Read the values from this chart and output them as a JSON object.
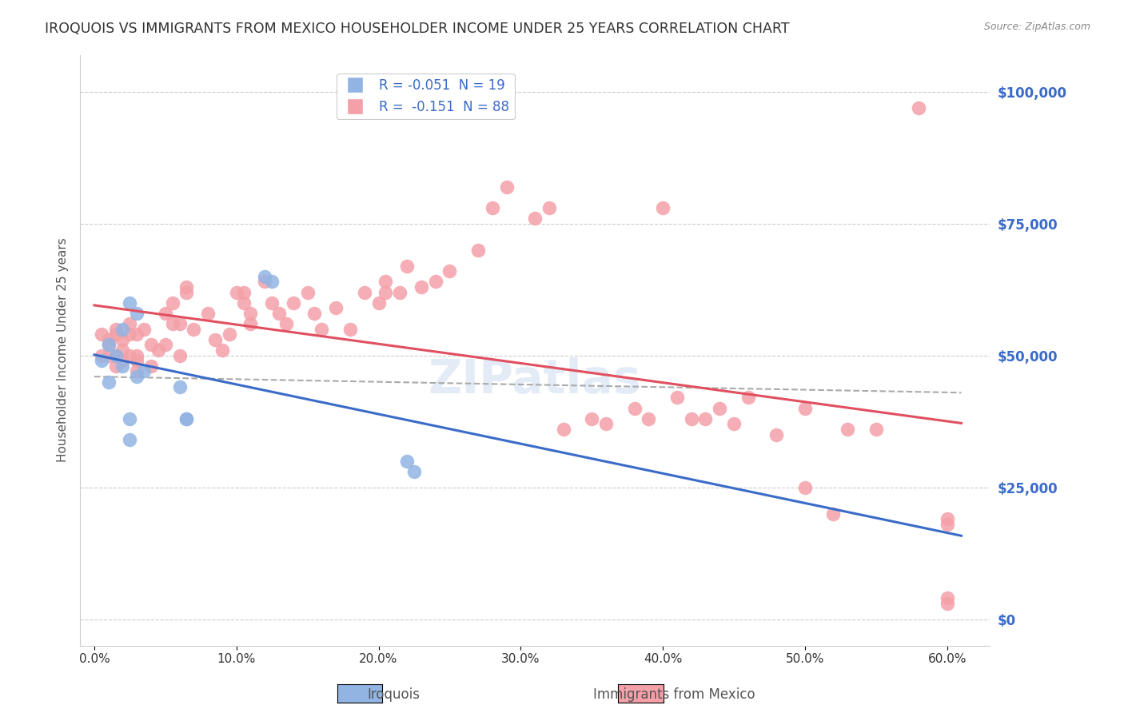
{
  "title": "IROQUOIS VS IMMIGRANTS FROM MEXICO HOUSEHOLDER INCOME UNDER 25 YEARS CORRELATION CHART",
  "source": "Source: ZipAtlas.com",
  "xlabel_ticks": [
    "0.0%",
    "10.0%",
    "20.0%",
    "30.0%",
    "40.0%",
    "50.0%",
    "60.0%"
  ],
  "xlabel_vals": [
    0,
    0.1,
    0.2,
    0.3,
    0.4,
    0.5,
    0.6
  ],
  "ylabel_ticks": [
    "$0",
    "$25,000",
    "$50,000",
    "$75,000",
    "$100,000"
  ],
  "ylabel_vals": [
    0,
    25000,
    50000,
    75000,
    100000
  ],
  "ylabel_label": "Householder Income Under 25 years",
  "xlim": [
    -0.01,
    0.63
  ],
  "ylim": [
    -5000,
    107000
  ],
  "iroquois_R": -0.051,
  "iroquois_N": 19,
  "mexico_R": -0.151,
  "mexico_N": 88,
  "iroquois_color": "#92b4e3",
  "mexico_color": "#f4a0a8",
  "iroquois_line_color": "#3a6bc8",
  "mexico_line_color": "#e05060",
  "watermark": "ZIPatlas",
  "iroquois_x": [
    0.005,
    0.01,
    0.01,
    0.015,
    0.02,
    0.02,
    0.025,
    0.025,
    0.025,
    0.03,
    0.03,
    0.035,
    0.06,
    0.065,
    0.065,
    0.12,
    0.125,
    0.22,
    0.225
  ],
  "iroquois_y": [
    49000,
    52000,
    45000,
    50000,
    55000,
    48000,
    38000,
    34000,
    60000,
    58000,
    46000,
    47000,
    44000,
    38000,
    38000,
    65000,
    64000,
    30000,
    28000
  ],
  "mexico_x": [
    0.005,
    0.005,
    0.01,
    0.01,
    0.01,
    0.015,
    0.015,
    0.015,
    0.015,
    0.02,
    0.02,
    0.02,
    0.025,
    0.025,
    0.025,
    0.03,
    0.03,
    0.03,
    0.03,
    0.035,
    0.04,
    0.04,
    0.045,
    0.05,
    0.05,
    0.055,
    0.055,
    0.06,
    0.06,
    0.065,
    0.065,
    0.07,
    0.08,
    0.085,
    0.09,
    0.095,
    0.1,
    0.105,
    0.105,
    0.11,
    0.11,
    0.12,
    0.125,
    0.13,
    0.135,
    0.14,
    0.15,
    0.155,
    0.16,
    0.17,
    0.18,
    0.19,
    0.2,
    0.205,
    0.205,
    0.215,
    0.22,
    0.23,
    0.24,
    0.25,
    0.27,
    0.28,
    0.29,
    0.31,
    0.32,
    0.33,
    0.35,
    0.36,
    0.38,
    0.39,
    0.4,
    0.41,
    0.42,
    0.43,
    0.44,
    0.45,
    0.46,
    0.48,
    0.5,
    0.5,
    0.52,
    0.53,
    0.55,
    0.58,
    0.6,
    0.6,
    0.6,
    0.6
  ],
  "mexico_y": [
    54000,
    50000,
    53000,
    50000,
    52000,
    55000,
    50000,
    54000,
    48000,
    53000,
    51000,
    49000,
    54000,
    56000,
    50000,
    54000,
    50000,
    49000,
    47000,
    55000,
    52000,
    48000,
    51000,
    58000,
    52000,
    60000,
    56000,
    56000,
    50000,
    63000,
    62000,
    55000,
    58000,
    53000,
    51000,
    54000,
    62000,
    62000,
    60000,
    58000,
    56000,
    64000,
    60000,
    58000,
    56000,
    60000,
    62000,
    58000,
    55000,
    59000,
    55000,
    62000,
    60000,
    64000,
    62000,
    62000,
    67000,
    63000,
    64000,
    66000,
    70000,
    78000,
    82000,
    76000,
    78000,
    36000,
    38000,
    37000,
    40000,
    38000,
    78000,
    42000,
    38000,
    38000,
    40000,
    37000,
    42000,
    35000,
    25000,
    40000,
    20000,
    36000,
    36000,
    97000,
    3000,
    4000,
    19000,
    18000
  ]
}
